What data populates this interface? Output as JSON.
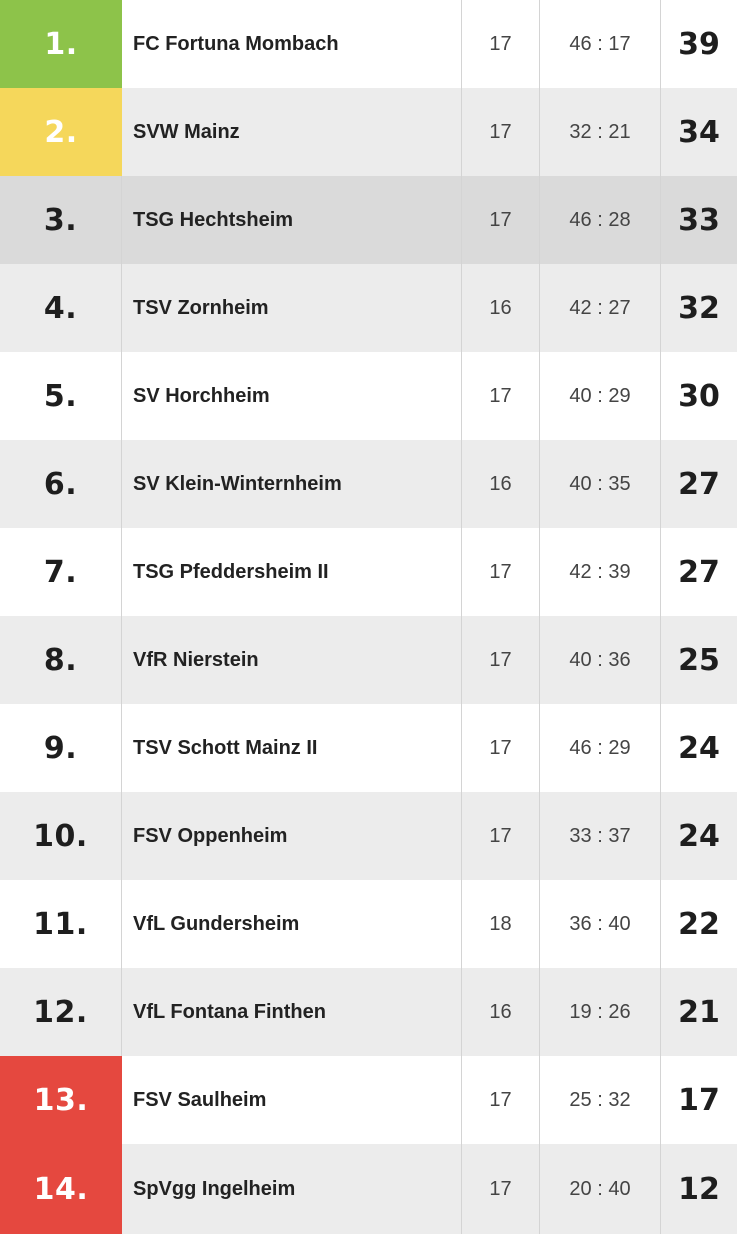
{
  "colors": {
    "promotion": "#8dc34a",
    "relegation_playoff_up": "#f5d75b",
    "relegation": "#e5483f"
  },
  "rows": [
    {
      "rank": "1.",
      "team": "FC Fortuna Mombach",
      "games": "17",
      "goals": "46 : 17",
      "points": "39",
      "status": "promotion"
    },
    {
      "rank": "2.",
      "team": "SVW Mainz",
      "games": "17",
      "goals": "32 : 21",
      "points": "34",
      "status": "relegation_playoff_up"
    },
    {
      "rank": "3.",
      "team": "TSG Hechtsheim",
      "games": "17",
      "goals": "46 : 28",
      "points": "33",
      "status": "highlight"
    },
    {
      "rank": "4.",
      "team": "TSV Zornheim",
      "games": "16",
      "goals": "42 : 27",
      "points": "32",
      "status": ""
    },
    {
      "rank": "5.",
      "team": "SV Horchheim",
      "games": "17",
      "goals": "40 : 29",
      "points": "30",
      "status": ""
    },
    {
      "rank": "6.",
      "team": "SV Klein-Winternheim",
      "games": "16",
      "goals": "40 : 35",
      "points": "27",
      "status": ""
    },
    {
      "rank": "7.",
      "team": "TSG Pfeddersheim II",
      "games": "17",
      "goals": "42 : 39",
      "points": "27",
      "status": ""
    },
    {
      "rank": "8.",
      "team": "VfR Nierstein",
      "games": "17",
      "goals": "40 : 36",
      "points": "25",
      "status": ""
    },
    {
      "rank": "9.",
      "team": "TSV Schott Mainz II",
      "games": "17",
      "goals": "46 : 29",
      "points": "24",
      "status": ""
    },
    {
      "rank": "10.",
      "team": "FSV Oppenheim",
      "games": "17",
      "goals": "33 : 37",
      "points": "24",
      "status": ""
    },
    {
      "rank": "11.",
      "team": "VfL Gundersheim",
      "games": "18",
      "goals": "36 : 40",
      "points": "22",
      "status": ""
    },
    {
      "rank": "12.",
      "team": "VfL Fontana Finthen",
      "games": "16",
      "goals": "19 : 26",
      "points": "21",
      "status": ""
    },
    {
      "rank": "13.",
      "team": "FSV Saulheim",
      "games": "17",
      "goals": "25 : 32",
      "points": "17",
      "status": "relegation"
    },
    {
      "rank": "14.",
      "team": "SpVgg Ingelheim",
      "games": "17",
      "goals": "20 : 40",
      "points": "12",
      "status": "relegation"
    }
  ]
}
